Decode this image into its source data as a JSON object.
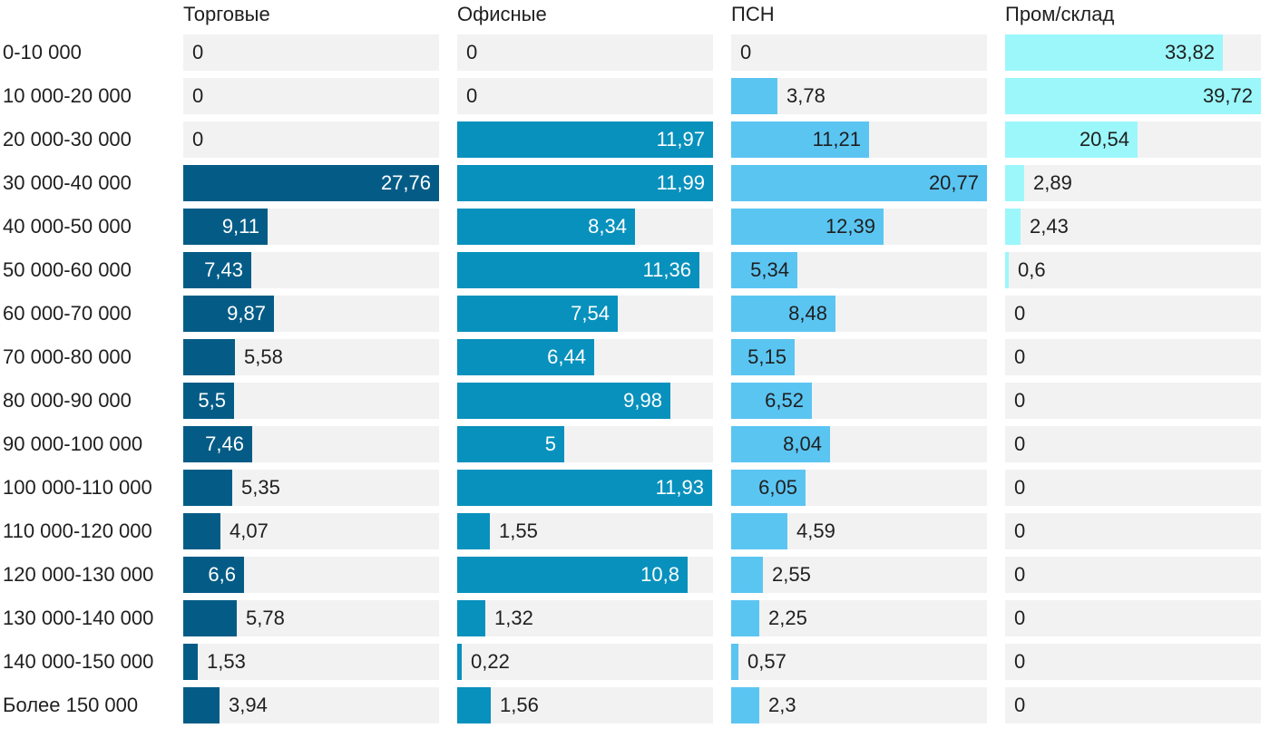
{
  "chart_data": {
    "type": "bar",
    "orientation": "horizontal",
    "categories": [
      "0-10 000",
      "10 000-20 000",
      "20 000-30 000",
      "30 000-40 000",
      "40 000-50 000",
      "50 000-60 000",
      "60 000-70 000",
      "70 000-80 000",
      "80 000-90 000",
      "90 000-100 000",
      "100 000-110 000",
      "110 000-120 000",
      "120 000-130 000",
      "130 000-140 000",
      "140 000-150 000",
      "Более 150 000"
    ],
    "series": [
      {
        "name": "Торговые",
        "color": "#045c86",
        "max": 27.76,
        "values": [
          0,
          0,
          0,
          27.76,
          9.11,
          7.43,
          9.87,
          5.58,
          5.5,
          7.46,
          5.35,
          4.07,
          6.6,
          5.78,
          1.53,
          3.94
        ],
        "labels": [
          "0",
          "0",
          "0",
          "27,76",
          "9,11",
          "7,43",
          "9,87",
          "5,58",
          "5,5",
          "7,46",
          "5,35",
          "4,07",
          "6,6",
          "5,78",
          "1,53",
          "3,94"
        ]
      },
      {
        "name": "Офисные",
        "color": "#0891bd",
        "max": 11.99,
        "values": [
          0,
          0,
          11.97,
          11.99,
          8.34,
          11.36,
          7.54,
          6.44,
          9.98,
          5,
          11.93,
          1.55,
          10.8,
          1.32,
          0.22,
          1.56
        ],
        "labels": [
          "0",
          "0",
          "11,97",
          "11,99",
          "8,34",
          "11,36",
          "7,54",
          "6,44",
          "9,98",
          "5",
          "11,93",
          "1,55",
          "10,8",
          "1,32",
          "0,22",
          "1,56"
        ]
      },
      {
        "name": "ПСН",
        "color": "#5bc5f2",
        "max": 20.77,
        "values": [
          0,
          3.78,
          11.21,
          20.77,
          12.39,
          5.34,
          8.48,
          5.15,
          6.52,
          8.04,
          6.05,
          4.59,
          2.55,
          2.25,
          0.57,
          2.3
        ],
        "labels": [
          "0",
          "3,78",
          "11,21",
          "20,77",
          "12,39",
          "5,34",
          "8,48",
          "5,15",
          "6,52",
          "8,04",
          "6,05",
          "4,59",
          "2,55",
          "2,25",
          "0,57",
          "2,3"
        ]
      },
      {
        "name": "Пром/склад",
        "color": "#9cf7fb",
        "max": 39.72,
        "values": [
          33.82,
          39.72,
          20.54,
          2.89,
          2.43,
          0.6,
          0,
          0,
          0,
          0,
          0,
          0,
          0,
          0,
          0,
          0
        ],
        "labels": [
          "33,82",
          "39,72",
          "20,54",
          "2,89",
          "2,43",
          "0,6",
          "0",
          "0",
          "0",
          "0",
          "0",
          "0",
          "0",
          "0",
          "0",
          "0"
        ]
      }
    ]
  }
}
